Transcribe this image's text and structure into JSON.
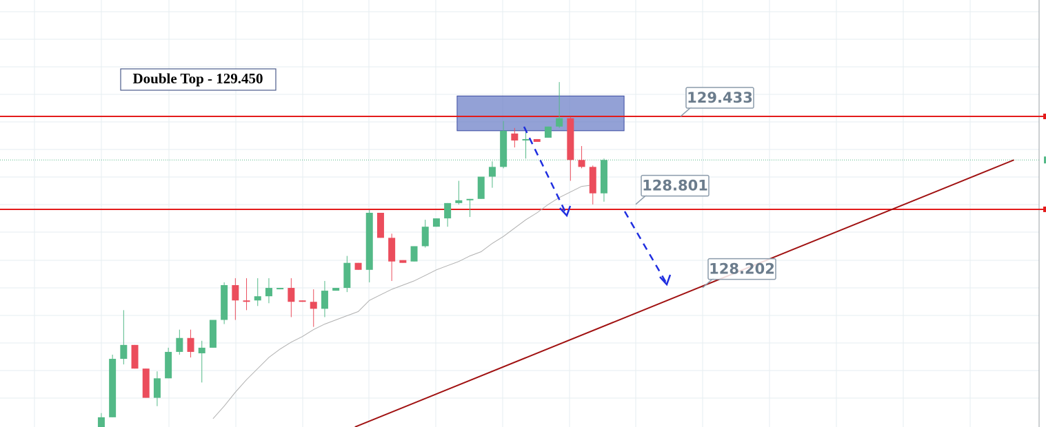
{
  "chart_data": {
    "type": "candlestick",
    "ylim": [
      127.2,
      130.27
    ],
    "xlim": [
      -9.07,
      84.57
    ],
    "open": [
      127.2,
      127.27,
      127.69,
      127.79,
      127.62,
      127.41,
      127.55,
      127.74,
      127.84,
      127.73,
      127.77,
      127.97,
      128.22,
      128.11,
      128.11,
      128.14,
      128.19,
      128.2,
      128.11,
      128.1,
      128.05,
      128.18,
      128.2,
      128.38,
      128.33,
      128.74,
      128.56,
      128.4,
      128.39,
      128.5,
      128.64,
      128.7,
      128.81,
      128.83,
      128.84,
      129.0,
      129.07,
      129.31,
      129.26,
      129.27,
      129.28,
      129.36,
      129.42,
      129.12,
      129.07,
      128.88
    ],
    "high": [
      127.3,
      127.72,
      128.04,
      127.79,
      127.62,
      127.6,
      127.77,
      127.9,
      127.9,
      127.82,
      127.97,
      128.24,
      128.27,
      128.27,
      128.27,
      128.27,
      128.2,
      128.27,
      128.11,
      128.19,
      128.25,
      128.2,
      128.43,
      128.38,
      128.76,
      128.74,
      128.59,
      128.4,
      128.5,
      128.69,
      128.7,
      128.81,
      128.97,
      128.84,
      129.0,
      129.11,
      129.4,
      129.35,
      129.35,
      129.27,
      129.36,
      129.68,
      129.43,
      129.22,
      129.08,
      129.13
    ],
    "low": [
      127.2,
      127.27,
      127.65,
      127.62,
      127.41,
      127.35,
      127.55,
      127.72,
      127.7,
      127.52,
      127.77,
      127.94,
      127.97,
      128.04,
      128.07,
      128.09,
      128.19,
      127.99,
      128.1,
      127.92,
      127.99,
      128.18,
      128.17,
      128.33,
      128.24,
      128.56,
      128.25,
      128.38,
      128.39,
      128.49,
      128.64,
      128.64,
      128.8,
      128.71,
      128.84,
      128.92,
      129.06,
      129.21,
      129.13,
      129.25,
      129.28,
      129.35,
      128.97,
      129.06,
      128.8,
      128.82
    ],
    "close": [
      127.27,
      127.69,
      127.79,
      127.62,
      127.41,
      127.55,
      127.74,
      127.84,
      127.74,
      127.77,
      127.97,
      128.22,
      128.11,
      128.1,
      128.14,
      128.2,
      128.2,
      128.1,
      128.1,
      128.05,
      128.18,
      128.2,
      128.38,
      128.33,
      128.74,
      128.56,
      128.39,
      128.38,
      128.5,
      128.64,
      128.7,
      128.81,
      128.83,
      128.84,
      129.0,
      129.07,
      129.33,
      129.26,
      129.27,
      129.25,
      129.36,
      129.42,
      129.12,
      129.07,
      128.88,
      129.12
    ],
    "moving_average": [
      null,
      null,
      null,
      null,
      null,
      null,
      null,
      null,
      null,
      null,
      127.26,
      127.35,
      127.45,
      127.54,
      127.62,
      127.7,
      127.76,
      127.81,
      127.85,
      127.9,
      127.94,
      127.97,
      128.0,
      128.03,
      128.11,
      128.15,
      128.19,
      128.22,
      128.25,
      128.29,
      128.33,
      128.36,
      128.39,
      128.43,
      128.46,
      128.52,
      128.57,
      128.63,
      128.69,
      128.74,
      128.8,
      128.85,
      128.89,
      128.93,
      128.94,
      null
    ],
    "up_color": "#53b987",
    "down_color": "#eb4d5c",
    "ma_color": "#b0b0b0",
    "levels": [
      129.433,
      128.765
    ],
    "level_color": "#e31b1b",
    "last_price": 129.12,
    "zone": {
      "x": [
        31.85,
        46.8
      ],
      "values": [
        129.58,
        129.33
      ],
      "color": "#6f82c8"
    },
    "trendline": {
      "x": [
        22.7,
        81.7
      ],
      "values": [
        127.2,
        129.12
      ],
      "color": "#a01010"
    },
    "price_labels": [
      129.433,
      128.801,
      128.202
    ],
    "title": "Double Top - 129.450"
  }
}
